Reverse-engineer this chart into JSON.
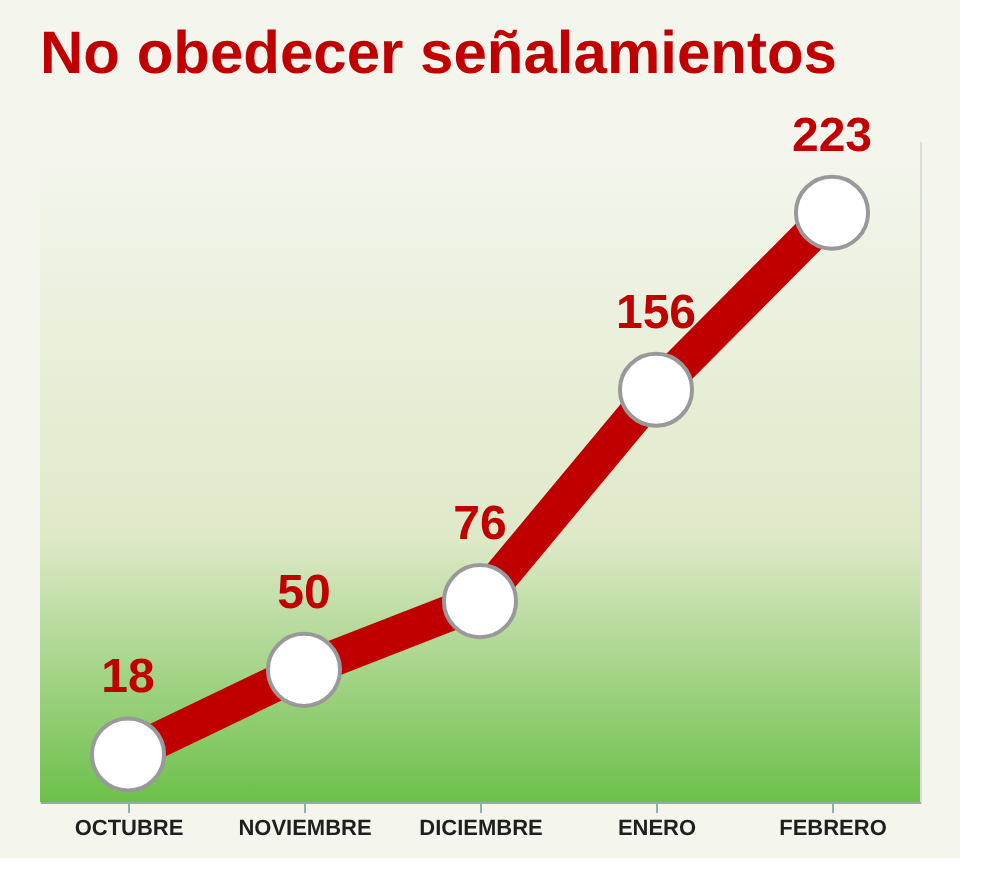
{
  "chart_data": {
    "type": "line",
    "title": "No obedecer señalamientos",
    "categories": [
      "OCTUBRE",
      "NOVIEMBRE",
      "DICIEMBRE",
      "ENERO",
      "FEBRERO"
    ],
    "series": [
      {
        "color": "#c00000",
        "values": [
          18,
          50,
          76,
          156,
          223
        ]
      }
    ],
    "data_labels": true,
    "marker": "circle",
    "line_style": "solid",
    "legend": false
  }
}
